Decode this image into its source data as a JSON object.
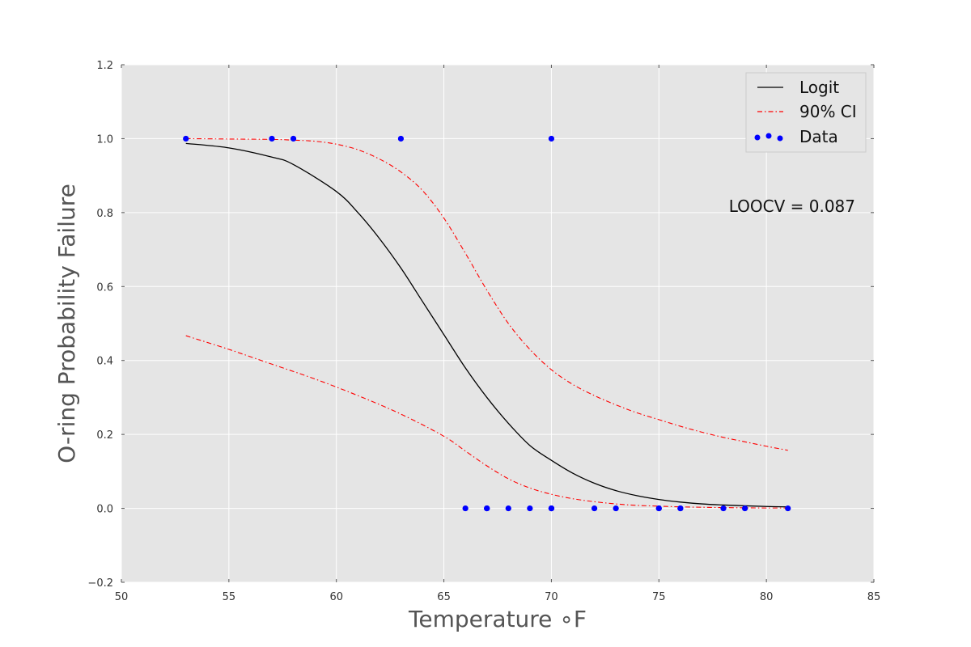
{
  "chart_data": {
    "type": "line",
    "title": "",
    "xlabel": "Temperature ∘F",
    "ylabel": "O-ring Probability Failure",
    "xlim": [
      50,
      85
    ],
    "ylim": [
      -0.2,
      1.2
    ],
    "x_ticks": [
      50,
      55,
      60,
      65,
      70,
      75,
      80,
      85
    ],
    "y_ticks": [
      -0.2,
      0.0,
      0.2,
      0.4,
      0.6,
      0.8,
      1.0,
      1.2
    ],
    "x_tick_labels": [
      "50",
      "55",
      "60",
      "65",
      "70",
      "75",
      "80",
      "85"
    ],
    "y_tick_labels": [
      "−0.2",
      "0.0",
      "0.2",
      "0.4",
      "0.6",
      "0.8",
      "1.0",
      "1.2"
    ],
    "grid": true,
    "background_color": "#e5e5e5",
    "legend": {
      "position": "top-right",
      "entries": [
        {
          "label": "Logit",
          "style": "solid",
          "color": "#000000"
        },
        {
          "label": "90% CI",
          "style": "dashdot",
          "color": "#ff0000"
        },
        {
          "label": "Data",
          "style": "marker",
          "color": "#0000ff"
        }
      ]
    },
    "annotation": {
      "text": "LOOCV = 0.087"
    },
    "series": [
      {
        "label": "Logit",
        "style": "solid",
        "color": "#000000",
        "x": [
          53,
          55,
          57,
          58,
          60,
          61,
          62,
          63,
          64,
          65,
          66,
          67,
          68,
          69,
          70,
          71,
          72,
          73,
          74,
          75,
          76,
          77,
          78,
          79,
          80,
          81
        ],
        "y": [
          0.987,
          0.975,
          0.95,
          0.93,
          0.857,
          0.8,
          0.73,
          0.65,
          0.56,
          0.47,
          0.38,
          0.3,
          0.23,
          0.17,
          0.13,
          0.095,
          0.068,
          0.048,
          0.034,
          0.024,
          0.017,
          0.012,
          0.009,
          0.007,
          0.005,
          0.004
        ]
      },
      {
        "label": "90% CI upper",
        "style": "dashdot",
        "color": "#ff0000",
        "x": [
          53,
          55,
          57,
          58,
          59,
          60,
          61,
          62,
          63,
          64,
          65,
          66,
          67,
          68,
          69,
          70,
          71,
          72,
          73,
          74,
          75,
          76,
          77,
          78,
          79,
          80,
          81
        ],
        "y": [
          1.0,
          0.999,
          0.998,
          0.996,
          0.993,
          0.985,
          0.97,
          0.945,
          0.91,
          0.86,
          0.785,
          0.69,
          0.59,
          0.5,
          0.43,
          0.375,
          0.335,
          0.305,
          0.28,
          0.258,
          0.24,
          0.222,
          0.206,
          0.192,
          0.18,
          0.168,
          0.157
        ]
      },
      {
        "label": "90% CI lower",
        "style": "dashdot",
        "color": "#ff0000",
        "x": [
          53,
          55,
          57,
          59,
          61,
          63,
          65,
          66,
          67,
          68,
          69,
          70,
          71,
          72,
          73,
          74,
          75,
          76,
          77,
          78,
          79,
          80,
          81
        ],
        "y": [
          0.467,
          0.43,
          0.39,
          0.35,
          0.305,
          0.255,
          0.195,
          0.155,
          0.115,
          0.08,
          0.055,
          0.038,
          0.026,
          0.018,
          0.012,
          0.008,
          0.006,
          0.004,
          0.003,
          0.002,
          0.0015,
          0.001,
          0.001
        ]
      }
    ],
    "points": {
      "label": "Data",
      "color": "#0000ff",
      "x": [
        53,
        57,
        58,
        63,
        70,
        66,
        67,
        67,
        67,
        68,
        69,
        70,
        70,
        70,
        72,
        73,
        75,
        75,
        76,
        76,
        78,
        79,
        81
      ],
      "y": [
        1,
        1,
        1,
        1,
        1,
        0,
        0,
        0,
        0,
        0,
        0,
        0,
        0,
        0,
        0,
        0,
        0,
        0,
        0,
        0,
        0,
        0,
        0
      ]
    }
  }
}
